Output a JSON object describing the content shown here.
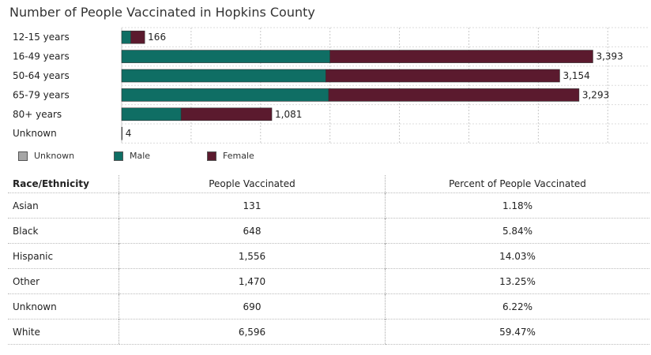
{
  "title": "Number of People Vaccinated in Hopkins County",
  "colors": {
    "unknown": "#a6a6a6",
    "male": "#0f6e64",
    "female": "#5b1a2e",
    "grid": "#c9c9c9"
  },
  "legend": [
    {
      "label": "Unknown",
      "color": "#a6a6a6"
    },
    {
      "label": "Male",
      "color": "#0f6e64"
    },
    {
      "label": "Female",
      "color": "#5b1a2e"
    }
  ],
  "chart_data": {
    "type": "bar",
    "orientation": "horizontal",
    "stacked": true,
    "title": "Number of People Vaccinated in Hopkins County",
    "categories": [
      "12-15 years",
      "16-49 years",
      "50-64 years",
      "65-79 years",
      "80+ years",
      "Unknown"
    ],
    "series": [
      {
        "name": "Unknown",
        "color": "#a6a6a6",
        "values": [
          0,
          0,
          0,
          0,
          0,
          4
        ]
      },
      {
        "name": "Male",
        "color": "#0f6e64",
        "values": [
          66,
          1500,
          1470,
          1490,
          428,
          0
        ]
      },
      {
        "name": "Female",
        "color": "#5b1a2e",
        "values": [
          100,
          1893,
          1684,
          1803,
          653,
          0
        ]
      }
    ],
    "totals": [
      166,
      3393,
      3154,
      3293,
      1081,
      4
    ],
    "total_labels": [
      "166",
      "3,393",
      "3,154",
      "3,293",
      "1,081",
      "4"
    ],
    "xlim": [
      0,
      3800
    ],
    "grid": true,
    "legend_position": "bottom-left"
  },
  "table": {
    "headers": [
      "Race/Ethnicity",
      "People Vaccinated",
      "Percent of People Vaccinated"
    ],
    "rows": [
      [
        "Asian",
        "131",
        "1.18%"
      ],
      [
        "Black",
        "648",
        "5.84%"
      ],
      [
        "Hispanic",
        "1,556",
        "14.03%"
      ],
      [
        "Other",
        "1,470",
        "13.25%"
      ],
      [
        "Unknown",
        "690",
        "6.22%"
      ],
      [
        "White",
        "6,596",
        "59.47%"
      ]
    ]
  }
}
